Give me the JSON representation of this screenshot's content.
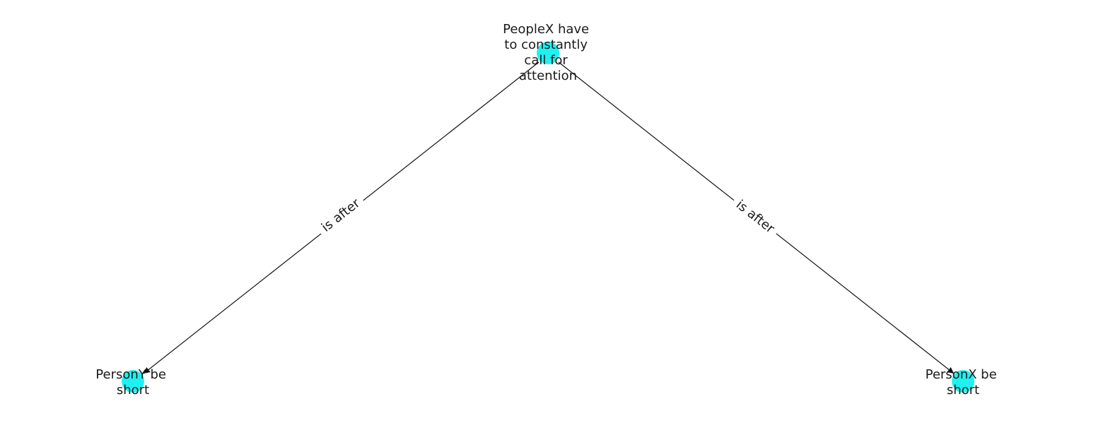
{
  "colors": {
    "node_fill": "#1ff1f1",
    "edge": "#111111",
    "text": "#1a1a1a",
    "background": "#ffffff"
  },
  "nodes": [
    {
      "id": "top",
      "label_lines": [
        "PeopleX have",
        "to constantly",
        "call for",
        "attention"
      ]
    },
    {
      "id": "left",
      "label_lines": [
        "PersonY be",
        "short"
      ]
    },
    {
      "id": "right",
      "label_lines": [
        "PersonX be",
        "short"
      ]
    }
  ],
  "edges": [
    {
      "from": "top",
      "to": "left",
      "label": "is after"
    },
    {
      "from": "top",
      "to": "right",
      "label": "is after"
    }
  ]
}
